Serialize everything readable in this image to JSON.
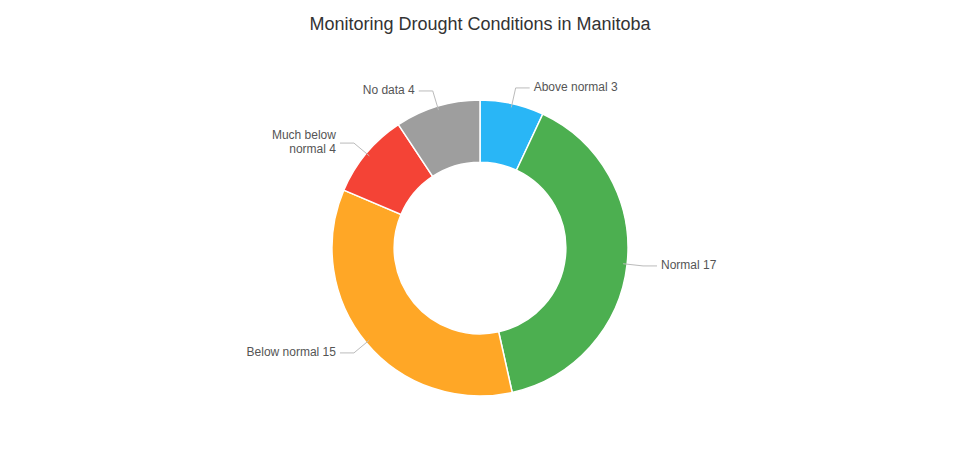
{
  "chart_data": {
    "type": "pie",
    "title": "Monitoring Drought Conditions in Manitoba",
    "values": [
      3,
      17,
      15,
      4,
      4
    ],
    "value_labels": [
      "Above normal 3",
      "Normal 17",
      "Below normal 15",
      "Much below\nnormal 4",
      "No data 4"
    ],
    "colors": [
      "#29b6f6",
      "#4caf50",
      "#ffa726",
      "#f44336",
      "#9e9e9e"
    ],
    "data_labels": true
  }
}
